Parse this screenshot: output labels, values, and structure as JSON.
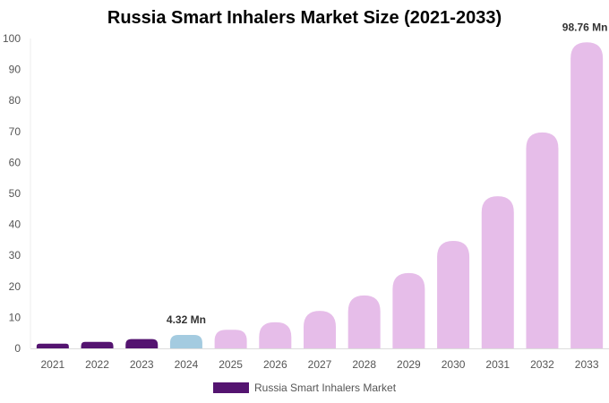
{
  "chart_data": {
    "type": "bar",
    "title": "Russia Smart Inhalers Market Size (2021-2033)",
    "categories": [
      "2021",
      "2022",
      "2023",
      "2024",
      "2025",
      "2026",
      "2027",
      "2028",
      "2029",
      "2030",
      "2031",
      "2032",
      "2033"
    ],
    "series": [
      {
        "name": "Russia Smart Inhalers Market",
        "values": [
          1.5,
          2.1,
          3.0,
          4.32,
          6.0,
          8.4,
          12.1,
          17.1,
          24.3,
          34.7,
          49.1,
          69.7,
          98.76
        ]
      }
    ],
    "data_labels": {
      "2024": "4.32 Mn",
      "2033": "98.76 Mn"
    },
    "bar_colors": {
      "historical": "#541470",
      "base_year": "#a4cbe0",
      "forecast": "#e6bde9"
    },
    "ylim": [
      0,
      100
    ],
    "yticks": [
      0,
      10,
      20,
      30,
      40,
      50,
      60,
      70,
      80,
      90,
      100
    ],
    "xlabel": "",
    "ylabel": "",
    "grid": false,
    "legend": "bottom"
  }
}
